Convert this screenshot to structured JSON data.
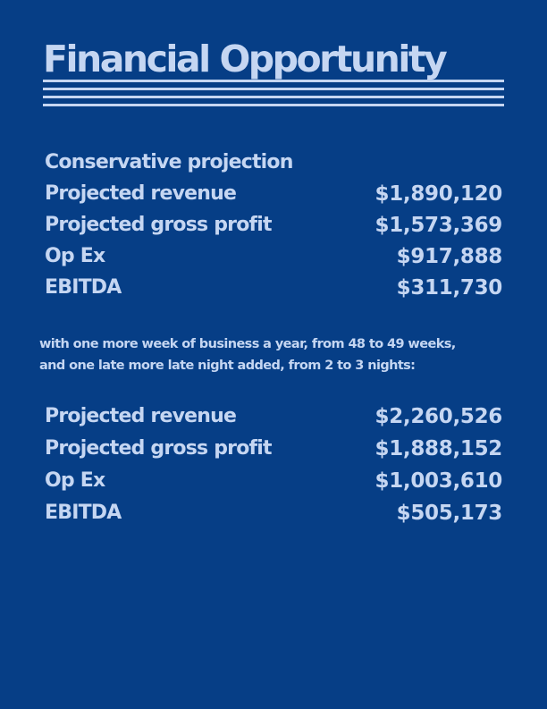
{
  "title": "Financial Opportunity",
  "section1": {
    "heading": "Conservative projection",
    "rows": [
      {
        "label": "Projected revenue",
        "value": "$1,890,120"
      },
      {
        "label": "Projected gross profit",
        "value": "$1,573,369"
      },
      {
        "label": "Op Ex",
        "value": "$917,888"
      },
      {
        "label": "EBITDA",
        "value": "$311,730"
      }
    ]
  },
  "note": {
    "line1": "with one more week of business a year, from 48 to 49 weeks,",
    "line2": "and one late more late night added, from 2 to 3 nights:"
  },
  "section2": {
    "rows": [
      {
        "label": "Projected revenue",
        "value": "$2,260,526"
      },
      {
        "label": "Projected gross profit",
        "value": "$1,888,152"
      },
      {
        "label": "Op Ex",
        "value": "$1,003,610"
      },
      {
        "label": "EBITDA",
        "value": "$505,173"
      }
    ]
  },
  "colors": {
    "background": "#063e86",
    "text": "#c5d6f2"
  }
}
